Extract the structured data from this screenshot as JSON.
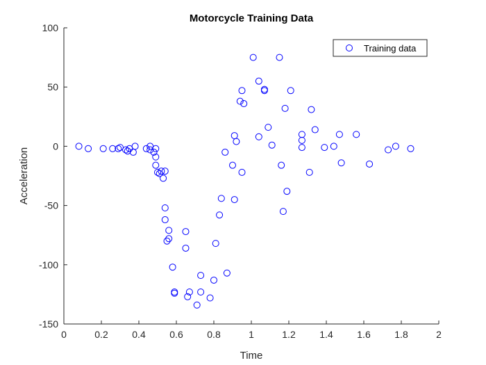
{
  "chart_data": {
    "type": "scatter",
    "title": "Motorcycle Training Data",
    "xlabel": "Time",
    "ylabel": "Acceleration",
    "xlim": [
      0,
      2
    ],
    "ylim": [
      -150,
      100
    ],
    "xticks": [
      "0",
      "0.2",
      "0.4",
      "0.6",
      "0.8",
      "1",
      "1.2",
      "1.4",
      "1.6",
      "1.8",
      "2"
    ],
    "yticks": [
      "-150",
      "-100",
      "-50",
      "0",
      "50",
      "100"
    ],
    "grid": false,
    "legend": {
      "position": "top-right",
      "entries": [
        "Training data"
      ]
    },
    "marker": "circle-open",
    "color": "#0000ff",
    "series": [
      {
        "name": "Training data",
        "x": [
          0.08,
          0.13,
          0.21,
          0.26,
          0.29,
          0.3,
          0.33,
          0.34,
          0.35,
          0.37,
          0.38,
          0.44,
          0.46,
          0.46,
          0.48,
          0.49,
          0.49,
          0.49,
          0.5,
          0.51,
          0.52,
          0.53,
          0.54,
          0.54,
          0.54,
          0.55,
          0.56,
          0.56,
          0.58,
          0.59,
          0.59,
          0.65,
          0.65,
          0.66,
          0.67,
          0.71,
          0.73,
          0.73,
          0.78,
          0.8,
          0.81,
          0.83,
          0.84,
          0.86,
          0.87,
          0.9,
          0.91,
          0.91,
          0.92,
          0.94,
          0.95,
          0.95,
          0.96,
          1.01,
          1.04,
          1.04,
          1.07,
          1.07,
          1.09,
          1.11,
          1.15,
          1.16,
          1.17,
          1.18,
          1.19,
          1.21,
          1.27,
          1.27,
          1.27,
          1.31,
          1.32,
          1.34,
          1.39,
          1.44,
          1.47,
          1.48,
          1.56,
          1.63,
          1.73,
          1.77,
          1.85
        ],
        "y": [
          0,
          -2,
          -2,
          -2,
          -2,
          -1,
          -3,
          -4,
          -2,
          -5,
          0,
          -2,
          -3,
          0,
          -5,
          -9,
          -16,
          -2,
          -22,
          -23,
          -21,
          -27,
          -21,
          -52,
          -62,
          -80,
          -71,
          -78,
          -102,
          -123,
          -124,
          -72,
          -86,
          -127,
          -123,
          -134,
          -109,
          -123,
          -128,
          -113,
          -82,
          -58,
          -44,
          -5,
          -107,
          -16,
          9,
          -45,
          4,
          38,
          -22,
          47,
          36,
          75,
          8,
          55,
          48,
          47,
          16,
          1,
          75,
          -16,
          -55,
          32,
          -38,
          47,
          10,
          5,
          -1,
          -22,
          31,
          14,
          -1,
          0,
          10,
          -14,
          10,
          -15,
          -3,
          0,
          -2
        ]
      }
    ]
  }
}
